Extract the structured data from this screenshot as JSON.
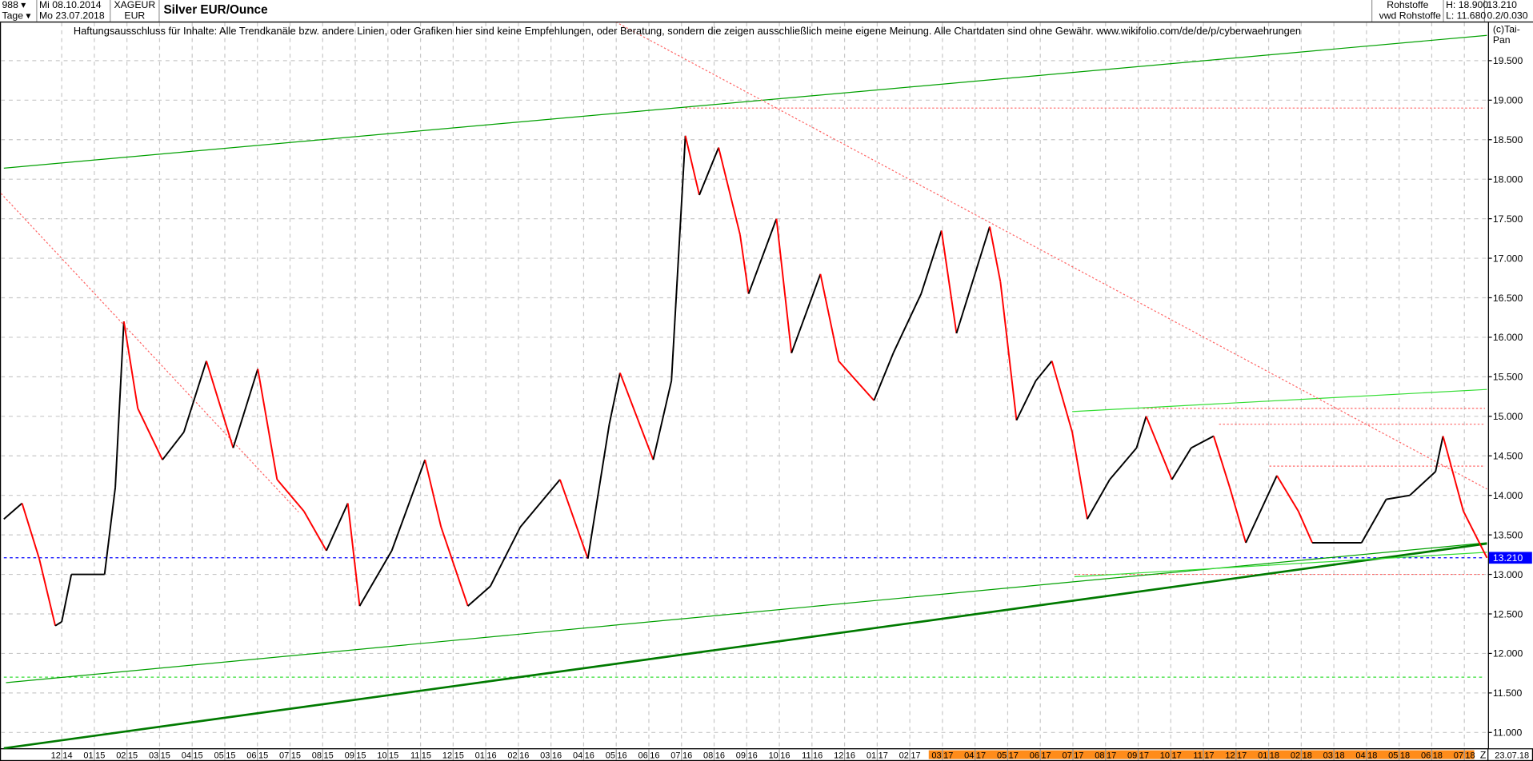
{
  "header": {
    "period_count": "988",
    "period_unit": "Tage",
    "date_from": "Mi 08.10.2014",
    "date_to": "Mo 23.07.2018",
    "symbol": "XAGEUR",
    "currency": "EUR",
    "title": "Silver EUR/Ounce",
    "market": "Rohstoffe",
    "source": "vwd Rohstoffe",
    "high": "H: 18.900",
    "low": "L: 11.680",
    "last": "13.210",
    "change": "0.2/0.030",
    "dropdown_icon": "triangle-down"
  },
  "disclaimer": "Haftungsausschluss für Inhalte: Alle Trendkanäle bzw. andere Linien, oder Grafiken hier sind keine Empfehlungen, oder Beratung, sondern die zeigen ausschließlich meine eigene Meinung. Alle Chartdaten sind ohne Gewähr.  www.wikifolio.com/de/de/p/cyberwaehrungen",
  "copyright": "(c)Tai-Pan",
  "colors": {
    "up": "#000000",
    "down": "#ff0000",
    "trend_dark": "#007a00",
    "trend": "#00a000",
    "trend_light": "#33dd33",
    "resistance": "#ff6666",
    "last_price": "#0000ff",
    "future_band": "#ff8c1a"
  },
  "chart_data": {
    "type": "line",
    "title": "Silver EUR/Ounce",
    "y_ticks": [
      "11.000",
      "11.500",
      "12.000",
      "12.500",
      "13.000",
      "13.500",
      "14.000",
      "14.500",
      "15.000",
      "15.500",
      "16.000",
      "16.500",
      "17.000",
      "17.500",
      "18.000",
      "18.500",
      "19.000",
      "19.500"
    ],
    "ylim": [
      10.75,
      20.0
    ],
    "grid": true,
    "x_tick_labels": [
      [
        "12",
        "14"
      ],
      [
        "01",
        "15"
      ],
      [
        "02",
        "15"
      ],
      [
        "03",
        "15"
      ],
      [
        "04",
        "15"
      ],
      [
        "05",
        "15"
      ],
      [
        "06",
        "15"
      ],
      [
        "07",
        "15"
      ],
      [
        "08",
        "15"
      ],
      [
        "09",
        "15"
      ],
      [
        "10",
        "15"
      ],
      [
        "11",
        "15"
      ],
      [
        "12",
        "15"
      ],
      [
        "01",
        "16"
      ],
      [
        "02",
        "16"
      ],
      [
        "03",
        "16"
      ],
      [
        "04",
        "16"
      ],
      [
        "05",
        "16"
      ],
      [
        "06",
        "16"
      ],
      [
        "07",
        "16"
      ],
      [
        "08",
        "16"
      ],
      [
        "09",
        "16"
      ],
      [
        "10",
        "16"
      ],
      [
        "11",
        "16"
      ],
      [
        "12",
        "16"
      ],
      [
        "01",
        "17"
      ],
      [
        "02",
        "17"
      ],
      [
        "03",
        "17"
      ],
      [
        "04",
        "17"
      ],
      [
        "05",
        "17"
      ],
      [
        "06",
        "17"
      ],
      [
        "07",
        "17"
      ],
      [
        "08",
        "17"
      ],
      [
        "09",
        "17"
      ],
      [
        "10",
        "17"
      ],
      [
        "11",
        "17"
      ],
      [
        "12",
        "17"
      ],
      [
        "01",
        "18"
      ],
      [
        "02",
        "18"
      ],
      [
        "03",
        "18"
      ],
      [
        "04",
        "18"
      ],
      [
        "05",
        "18"
      ],
      [
        "06",
        "18"
      ],
      [
        "07",
        "18"
      ]
    ],
    "x_end_marker": "Z",
    "x_end_date": "23.07.18",
    "last_price_label": "13.210",
    "series": [
      {
        "points": [
          [
            "2014-10-08",
            13.7
          ],
          [
            "2014-10-25",
            13.9
          ],
          [
            "2014-11-10",
            13.2
          ],
          [
            "2014-11-25",
            12.35
          ],
          [
            "2014-12-01",
            12.4
          ],
          [
            "2014-12-10",
            13.0
          ],
          [
            "2015-01-10",
            13.0
          ],
          [
            "2015-01-20",
            14.1
          ],
          [
            "2015-01-28",
            16.2
          ],
          [
            "2015-02-10",
            15.1
          ],
          [
            "2015-03-05",
            14.45
          ],
          [
            "2015-03-25",
            14.8
          ],
          [
            "2015-04-15",
            15.7
          ],
          [
            "2015-05-10",
            14.6
          ],
          [
            "2015-06-02",
            15.6
          ],
          [
            "2015-06-20",
            14.2
          ],
          [
            "2015-07-15",
            13.8
          ],
          [
            "2015-08-05",
            13.3
          ],
          [
            "2015-08-25",
            13.9
          ],
          [
            "2015-09-05",
            12.6
          ],
          [
            "2015-10-05",
            13.3
          ],
          [
            "2015-11-05",
            14.45
          ],
          [
            "2015-11-20",
            13.6
          ],
          [
            "2015-12-15",
            12.6
          ],
          [
            "2016-01-05",
            12.85
          ],
          [
            "2016-02-02",
            13.6
          ],
          [
            "2016-03-10",
            14.2
          ],
          [
            "2016-04-05",
            13.2
          ],
          [
            "2016-04-25",
            14.9
          ],
          [
            "2016-05-05",
            15.55
          ],
          [
            "2016-06-05",
            14.45
          ],
          [
            "2016-06-22",
            15.45
          ],
          [
            "2016-07-05",
            18.55
          ],
          [
            "2016-07-18",
            17.8
          ],
          [
            "2016-08-05",
            18.4
          ],
          [
            "2016-08-25",
            17.3
          ],
          [
            "2016-09-02",
            16.55
          ],
          [
            "2016-09-28",
            17.5
          ],
          [
            "2016-10-12",
            15.8
          ],
          [
            "2016-11-08",
            16.8
          ],
          [
            "2016-11-25",
            15.7
          ],
          [
            "2016-12-28",
            15.2
          ],
          [
            "2017-01-15",
            15.8
          ],
          [
            "2017-02-10",
            16.55
          ],
          [
            "2017-03-01",
            17.35
          ],
          [
            "2017-03-15",
            16.05
          ],
          [
            "2017-04-15",
            17.4
          ],
          [
            "2017-04-25",
            16.7
          ],
          [
            "2017-05-10",
            14.95
          ],
          [
            "2017-05-28",
            15.45
          ],
          [
            "2017-06-12",
            15.7
          ],
          [
            "2017-07-01",
            14.8
          ],
          [
            "2017-07-15",
            13.7
          ],
          [
            "2017-08-05",
            14.2
          ],
          [
            "2017-08-30",
            14.6
          ],
          [
            "2017-09-08",
            15.0
          ],
          [
            "2017-10-02",
            14.2
          ],
          [
            "2017-10-20",
            14.6
          ],
          [
            "2017-11-10",
            14.75
          ],
          [
            "2017-11-25",
            14.1
          ],
          [
            "2017-12-10",
            13.4
          ],
          [
            "2018-01-08",
            14.25
          ],
          [
            "2018-01-28",
            13.8
          ],
          [
            "2018-02-10",
            13.4
          ],
          [
            "2018-03-28",
            13.4
          ],
          [
            "2018-04-20",
            13.95
          ],
          [
            "2018-05-12",
            14.0
          ],
          [
            "2018-06-05",
            14.3
          ],
          [
            "2018-06-12",
            14.75
          ],
          [
            "2018-07-01",
            13.8
          ],
          [
            "2018-07-23",
            13.21
          ]
        ]
      }
    ],
    "trend_lines": [
      {
        "style": "trend",
        "from": [
          "2014-10-08",
          18.14
        ],
        "to": [
          "2018-07-23",
          19.82
        ]
      },
      {
        "style": "trend",
        "from": [
          "2014-10-10",
          11.63
        ],
        "to": [
          "2018-07-23",
          13.4
        ]
      },
      {
        "style": "trend_dark",
        "from": [
          "2014-10-08",
          10.8
        ],
        "to": [
          "2018-07-23",
          13.39
        ]
      },
      {
        "style": "trend_light",
        "from": [
          "2017-07-01",
          15.06
        ],
        "to": [
          "2018-07-23",
          15.34
        ]
      },
      {
        "style": "trend_light",
        "from": [
          "2017-07-03",
          12.97
        ],
        "to": [
          "2018-07-23",
          13.28
        ]
      },
      {
        "style": "resistance",
        "from": [
          "2016-05-01",
          19.99
        ],
        "to": [
          "2018-07-23",
          14.08
        ]
      },
      {
        "style": "resistance",
        "from": [
          "2014-10-01",
          17.82
        ],
        "to": [
          "2015-07-10",
          13.79
        ]
      }
    ],
    "horizontal_levels": [
      {
        "style": "resistance",
        "value": 18.9,
        "from": "2016-07-05"
      },
      {
        "style": "resistance",
        "value": 15.1,
        "from": "2017-09-05"
      },
      {
        "style": "resistance",
        "value": 14.9,
        "from": "2017-11-15"
      },
      {
        "style": "resistance",
        "value": 14.37,
        "from": "2018-01-01"
      },
      {
        "style": "resistance",
        "value": 13.0,
        "from": "2017-07-03"
      },
      {
        "style": "trend_light",
        "value": 11.7,
        "from": "2014-10-08"
      },
      {
        "style": "last_price",
        "value": 13.21,
        "from": "2014-10-08"
      }
    ]
  }
}
